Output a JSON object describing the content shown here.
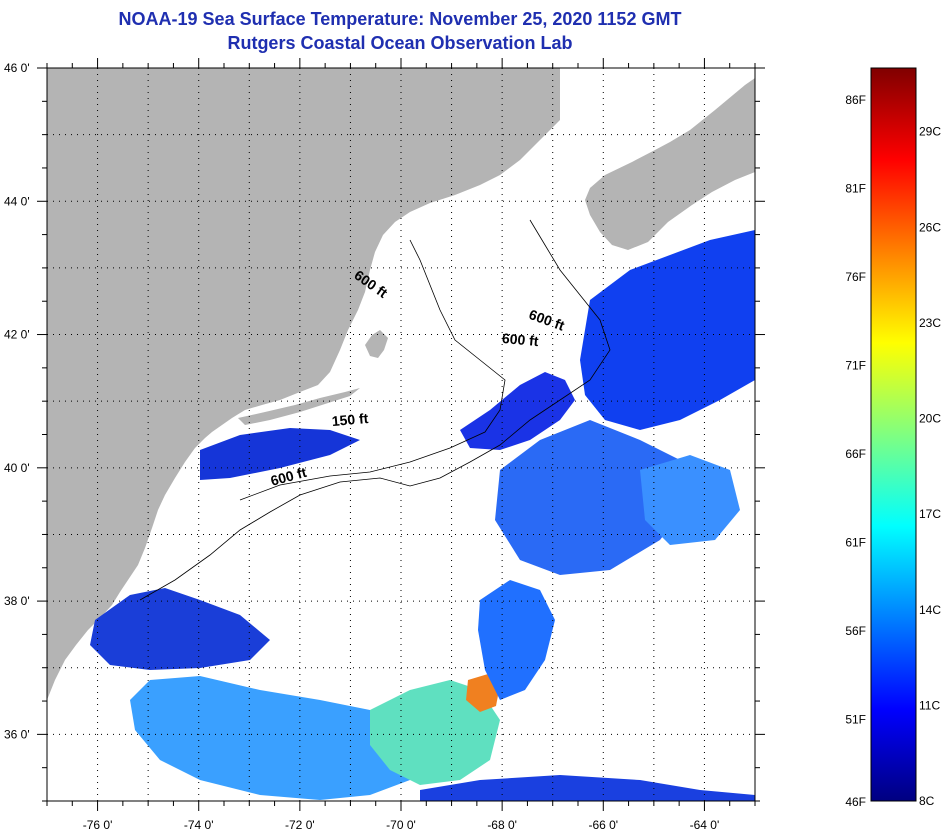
{
  "title": "NOAA-19 Sea Surface Temperature:  November 25, 2020 1152 GMT",
  "subtitle": "Rutgers Coastal Ocean Observation Lab",
  "map": {
    "lon_range": [
      -77,
      -63
    ],
    "lat_range": [
      35,
      46
    ],
    "lon_ticks": [
      {
        "value": -76,
        "label": "-76 0'"
      },
      {
        "value": -74,
        "label": "-74 0'"
      },
      {
        "value": -72,
        "label": "-72 0'"
      },
      {
        "value": -70,
        "label": "-70 0'"
      },
      {
        "value": -68,
        "label": "-68 0'"
      },
      {
        "value": -66,
        "label": "-66 0'"
      },
      {
        "value": -64,
        "label": "-64 0'"
      }
    ],
    "lat_ticks": [
      {
        "value": 36,
        "label": "36 0'"
      },
      {
        "value": 38,
        "label": "38 0'"
      },
      {
        "value": 40,
        "label": "40 0'"
      },
      {
        "value": 42,
        "label": "42 0'"
      },
      {
        "value": 44,
        "label": "44 0'"
      },
      {
        "value": 46,
        "label": "46 0'"
      }
    ],
    "land_color": "#b4b4b4",
    "cloud_color": "#ffffff"
  },
  "contour_labels": [
    {
      "text": "600 ft",
      "lon": -70.65,
      "lat": 42.7,
      "angle": 35
    },
    {
      "text": "600 ft",
      "lon": -67.15,
      "lat": 42.15,
      "angle": 20
    },
    {
      "text": "600 ft",
      "lon": -67.65,
      "lat": 41.85,
      "angle": 5
    },
    {
      "text": "150 ft",
      "lon": -71.0,
      "lat": 40.65,
      "angle": -5
    },
    {
      "text": "600 ft",
      "lon": -72.2,
      "lat": 39.8,
      "angle": -15
    }
  ],
  "colorbar": {
    "min_c": 8,
    "max_c": 31,
    "fahrenheit_ticks": [
      {
        "value": 46,
        "label": "46F"
      },
      {
        "value": 51,
        "label": "51F"
      },
      {
        "value": 56,
        "label": "56F"
      },
      {
        "value": 61,
        "label": "61F"
      },
      {
        "value": 66,
        "label": "66F"
      },
      {
        "value": 71,
        "label": "71F"
      },
      {
        "value": 76,
        "label": "76F"
      },
      {
        "value": 81,
        "label": "81F"
      },
      {
        "value": 86,
        "label": "86F"
      }
    ],
    "celsius_ticks": [
      {
        "value": 8,
        "label": "8C"
      },
      {
        "value": 11,
        "label": "11C"
      },
      {
        "value": 14,
        "label": "14C"
      },
      {
        "value": 17,
        "label": "17C"
      },
      {
        "value": 20,
        "label": "20C"
      },
      {
        "value": 23,
        "label": "23C"
      },
      {
        "value": 26,
        "label": "26C"
      },
      {
        "value": 29,
        "label": "29C"
      }
    ],
    "colors": [
      "#000080",
      "#0000ff",
      "#0080ff",
      "#00ffff",
      "#80ff80",
      "#ffff00",
      "#ff8000",
      "#ff0000",
      "#800000"
    ]
  }
}
